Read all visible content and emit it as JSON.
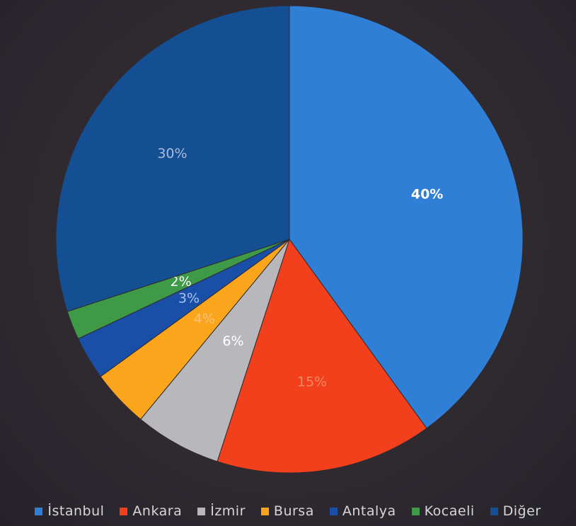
{
  "chart_data": {
    "type": "pie",
    "title": "",
    "legend_position": "bottom",
    "slices": [
      {
        "name": "İstanbul",
        "value": 40,
        "label": "40%",
        "color": "#2f7fd6",
        "label_color": "#ffffff"
      },
      {
        "name": "Ankara",
        "value": 15,
        "label": "15%",
        "color": "#f2401c",
        "label_color": "#f08a64"
      },
      {
        "name": "İzmir",
        "value": 6,
        "label": "6%",
        "color": "#b8b8bc",
        "label_color": "#ffffff"
      },
      {
        "name": "Bursa",
        "value": 4,
        "label": "4%",
        "color": "#fba51d",
        "label_color": "#f6c47a"
      },
      {
        "name": "Antalya",
        "value": 3,
        "label": "3%",
        "color": "#1a4fa8",
        "label_color": "#a8c0ee"
      },
      {
        "name": "Kocaeli",
        "value": 2,
        "label": "2%",
        "color": "#3f9a48",
        "label_color": "#ffffff"
      },
      {
        "name": "Diğer",
        "value": 30,
        "label": "30%",
        "color": "#154f93",
        "label_color": "#a8bedc"
      }
    ]
  }
}
